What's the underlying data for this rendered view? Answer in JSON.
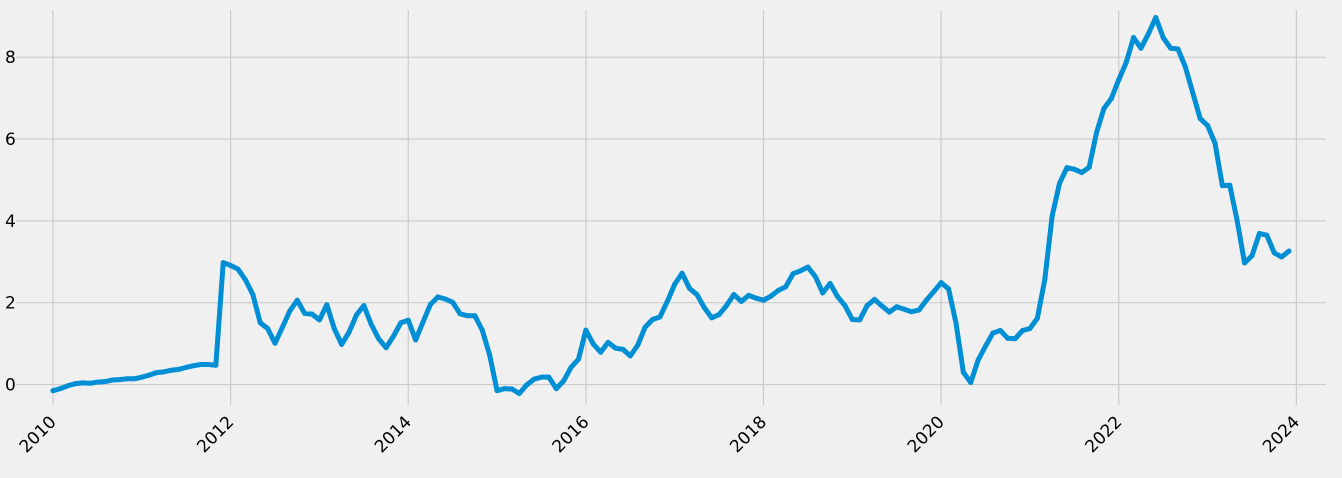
{
  "chart_data": {
    "type": "line",
    "title": "",
    "xlabel": "",
    "ylabel": "",
    "xlim": [
      "2009-08-01",
      "2024-05-01"
    ],
    "ylim": [
      -0.5,
      9.3
    ],
    "x_ticks": [
      "2010",
      "2012",
      "2014",
      "2016",
      "2018",
      "2020",
      "2022",
      "2024"
    ],
    "y_ticks": [
      0,
      2,
      4,
      6,
      8
    ],
    "grid": true,
    "style": "fivethirtyeight",
    "colors": {
      "background": "#f0f0f0",
      "grid": "#cbcbcb",
      "line": "#008fd5"
    },
    "series": [
      {
        "x": [
          "2010-01",
          "2010-02",
          "2010-03",
          "2010-04",
          "2010-05",
          "2010-06",
          "2010-07",
          "2010-08",
          "2010-09",
          "2010-10",
          "2010-11",
          "2010-12",
          "2011-01",
          "2011-02",
          "2011-03",
          "2011-04",
          "2011-05",
          "2011-06",
          "2011-07",
          "2011-08",
          "2011-09",
          "2011-10",
          "2011-11",
          "2011-12",
          "2012-01",
          "2012-02",
          "2012-03",
          "2012-04",
          "2012-05",
          "2012-06",
          "2012-07",
          "2012-08",
          "2012-09",
          "2012-10",
          "2012-11",
          "2012-12",
          "2013-01",
          "2013-02",
          "2013-03",
          "2013-04",
          "2013-05",
          "2013-06",
          "2013-07",
          "2013-08",
          "2013-09",
          "2013-10",
          "2013-11",
          "2013-12",
          "2014-01",
          "2014-02",
          "2014-03",
          "2014-04",
          "2014-05",
          "2014-06",
          "2014-07",
          "2014-08",
          "2014-09",
          "2014-10",
          "2014-11",
          "2014-12",
          "2015-01",
          "2015-02",
          "2015-03",
          "2015-04",
          "2015-05",
          "2015-06",
          "2015-07",
          "2015-08",
          "2015-09",
          "2015-10",
          "2015-11",
          "2015-12",
          "2016-01",
          "2016-02",
          "2016-03",
          "2016-04",
          "2016-05",
          "2016-06",
          "2016-07",
          "2016-08",
          "2016-09",
          "2016-10",
          "2016-11",
          "2016-12",
          "2017-01",
          "2017-02",
          "2017-03",
          "2017-04",
          "2017-05",
          "2017-06",
          "2017-07",
          "2017-08",
          "2017-09",
          "2017-10",
          "2017-11",
          "2017-12",
          "2018-01",
          "2018-02",
          "2018-03",
          "2018-04",
          "2018-05",
          "2018-06",
          "2018-07",
          "2018-08",
          "2018-09",
          "2018-10",
          "2018-11",
          "2018-12",
          "2019-01",
          "2019-02",
          "2019-03",
          "2019-04",
          "2019-05",
          "2019-06",
          "2019-07",
          "2019-08",
          "2019-09",
          "2019-10",
          "2019-11",
          "2019-12",
          "2020-01",
          "2020-02",
          "2020-03",
          "2020-04",
          "2020-05",
          "2020-06",
          "2020-07",
          "2020-08",
          "2020-09",
          "2020-10",
          "2020-11",
          "2020-12",
          "2021-01",
          "2021-02",
          "2021-03",
          "2021-04",
          "2021-05",
          "2021-06",
          "2021-07",
          "2021-08",
          "2021-09",
          "2021-10",
          "2021-11",
          "2021-12",
          "2022-01",
          "2022-02",
          "2022-03",
          "2022-04",
          "2022-05",
          "2022-06",
          "2022-07",
          "2022-08",
          "2022-09",
          "2022-10",
          "2022-11",
          "2022-12",
          "2023-01",
          "2023-02",
          "2023-03",
          "2023-04",
          "2023-05",
          "2023-06",
          "2023-07",
          "2023-08",
          "2023-09",
          "2023-10",
          "2023-11",
          "2023-12"
        ],
        "values": [
          -0.15,
          -0.1,
          -0.03,
          0.02,
          0.04,
          0.03,
          0.06,
          0.07,
          0.11,
          0.12,
          0.14,
          0.14,
          0.18,
          0.23,
          0.29,
          0.31,
          0.35,
          0.37,
          0.42,
          0.46,
          0.49,
          0.49,
          0.47,
          2.98,
          2.91,
          2.82,
          2.56,
          2.2,
          1.51,
          1.37,
          1.01,
          1.4,
          1.8,
          2.06,
          1.74,
          1.72,
          1.58,
          1.95,
          1.37,
          0.98,
          1.28,
          1.7,
          1.93,
          1.47,
          1.12,
          0.9,
          1.18,
          1.51,
          1.57,
          1.09,
          1.53,
          1.96,
          2.14,
          2.09,
          2.01,
          1.73,
          1.68,
          1.68,
          1.33,
          0.72,
          -0.15,
          -0.1,
          -0.11,
          -0.22,
          -0.01,
          0.13,
          0.18,
          0.18,
          -0.1,
          0.09,
          0.42,
          0.62,
          1.33,
          0.99,
          0.79,
          1.03,
          0.89,
          0.86,
          0.7,
          0.96,
          1.4,
          1.59,
          1.65,
          2.03,
          2.45,
          2.72,
          2.35,
          2.2,
          1.88,
          1.63,
          1.71,
          1.93,
          2.2,
          2.03,
          2.18,
          2.11,
          2.06,
          2.16,
          2.3,
          2.39,
          2.71,
          2.78,
          2.87,
          2.64,
          2.24,
          2.47,
          2.15,
          1.93,
          1.59,
          1.58,
          1.93,
          2.08,
          1.92,
          1.77,
          1.9,
          1.84,
          1.78,
          1.82,
          2.06,
          2.27,
          2.49,
          2.34,
          1.51,
          0.3,
          0.05,
          0.6,
          0.94,
          1.26,
          1.32,
          1.13,
          1.12,
          1.32,
          1.37,
          1.62,
          2.56,
          4.12,
          4.92,
          5.3,
          5.26,
          5.18,
          5.31,
          6.16,
          6.75,
          6.99,
          7.45,
          7.87,
          8.48,
          8.22,
          8.57,
          8.97,
          8.48,
          8.22,
          8.2,
          7.76,
          7.13,
          6.5,
          6.33,
          5.9,
          4.86,
          4.87,
          4.0,
          2.97,
          3.15,
          3.69,
          3.65,
          3.22,
          3.12,
          3.26
        ]
      }
    ]
  }
}
